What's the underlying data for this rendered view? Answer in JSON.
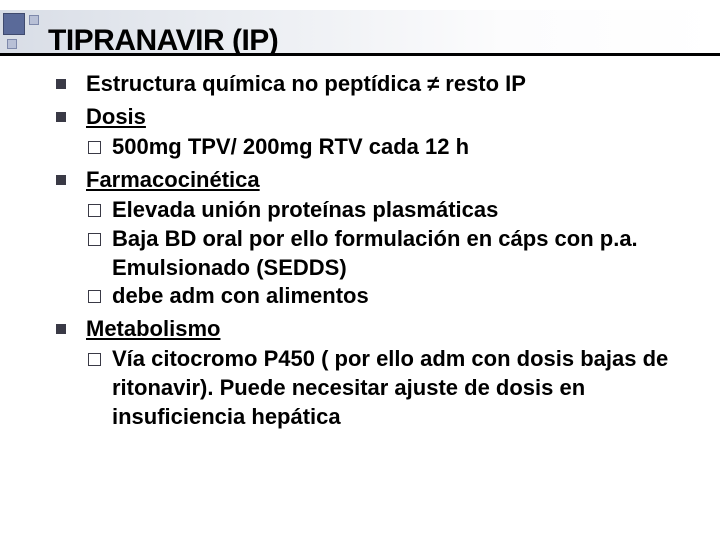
{
  "colors": {
    "accent_square": "#5a6a99",
    "accent_square_border": "#3f4a6e",
    "small_square": "#b8c0d6",
    "small_square_border": "#7e89ab",
    "bullet": "#3a3a46",
    "title_border": "#000000",
    "background": "#ffffff",
    "header_gradient_from": "#d8dde6",
    "header_gradient_to": "#ffffff"
  },
  "typography": {
    "title_fontsize_pt": 22,
    "body_fontsize_pt": 17,
    "body_weight": "bold",
    "title_family": "Arial Black / Impact (condensed heavy)"
  },
  "title": "TIPRANAVIR (IP)",
  "items": [
    {
      "text_html": "Estructura química no peptídica ≠ resto IP",
      "sub": []
    },
    {
      "text_html": "<span class='under'>Dosis</span>",
      "sub": [
        {
          "text_html": "500mg TPV/ 200mg RTV cada 12 h"
        }
      ]
    },
    {
      "text_html": "<span class='under'>Farmacocinética</span>",
      "sub": [
        {
          "text_html": "Elevada unión proteínas plasmáticas"
        },
        {
          "text_html": "Baja BD oral por ello formulación en cáps con p.a. Emulsionado (SEDDS)"
        },
        {
          "text_html": "debe adm con alimentos"
        }
      ]
    },
    {
      "text_html": "<span class='under'>Metabolismo</span>",
      "sub": [
        {
          "text_html": "Vía citocromo P450 ( por ello adm con dosis bajas de ritonavir). Puede necesitar ajuste de dosis en insuficiencia hepática"
        }
      ]
    }
  ]
}
